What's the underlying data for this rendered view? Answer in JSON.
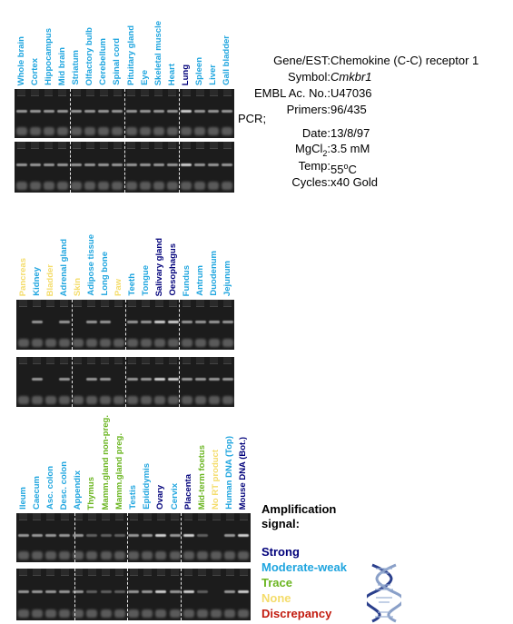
{
  "colors": {
    "strong": "#00007a",
    "moderate_weak": "#1fa5df",
    "trace": "#6ab520",
    "none": "#f4dc6a",
    "discrepancy": "#c21a0e"
  },
  "info": {
    "gene_est_key": "Gene/EST:",
    "gene_est_val": "Chemokine (C-C) receptor 1",
    "symbol_key": "Symbol:",
    "symbol_val": "Cmkbr1",
    "embl_key": "EMBL Ac. No.:",
    "embl_val": "U47036",
    "primers_key": "Primers:",
    "primers_val": "96/435",
    "pcr_key": "PCR;",
    "date_key": "Date:",
    "date_val": "13/8/97",
    "mgcl_key_main": "MgCl",
    "mgcl_key_sub": "2",
    "mgcl_key_colon": ":",
    "mgcl_val": "3.5 mM",
    "temp_key": "Temp:",
    "temp_val_num": "55",
    "temp_val_sup": "o",
    "temp_val_unit": "C",
    "cycles_key": "Cycles:",
    "cycles_val": "x40 Gold"
  },
  "panels": [
    {
      "lanes": [
        {
          "label": "Whole brain",
          "signal": "moderate_weak"
        },
        {
          "label": "Cortex",
          "signal": "moderate_weak"
        },
        {
          "label": "Hippocampus",
          "signal": "moderate_weak"
        },
        {
          "label": "Mid brain",
          "signal": "moderate_weak"
        },
        {
          "label": "Striatum",
          "signal": "moderate_weak"
        },
        {
          "label": "Olfactory bulb",
          "signal": "moderate_weak"
        },
        {
          "label": "Cerebellum",
          "signal": "moderate_weak"
        },
        {
          "label": "Spinal cord",
          "signal": "moderate_weak"
        },
        {
          "label": "Pituitary gland",
          "signal": "moderate_weak"
        },
        {
          "label": "Eye",
          "signal": "moderate_weak"
        },
        {
          "label": "Skeletal muscle",
          "signal": "moderate_weak"
        },
        {
          "label": "Heart",
          "signal": "moderate_weak"
        },
        {
          "label": "Lung",
          "signal": "strong"
        },
        {
          "label": "Spleen",
          "signal": "moderate_weak"
        },
        {
          "label": "Liver",
          "signal": "moderate_weak"
        },
        {
          "label": "Gall bladder",
          "signal": "moderate_weak"
        }
      ]
    },
    {
      "lanes": [
        {
          "label": "Pancreas",
          "signal": "none"
        },
        {
          "label": "Kidney",
          "signal": "moderate_weak"
        },
        {
          "label": "Bladder",
          "signal": "none"
        },
        {
          "label": "Adrenal gland",
          "signal": "moderate_weak"
        },
        {
          "label": "Skin",
          "signal": "none"
        },
        {
          "label": "Adipose tissue",
          "signal": "moderate_weak"
        },
        {
          "label": "Long bone",
          "signal": "moderate_weak"
        },
        {
          "label": "Paw",
          "signal": "none"
        },
        {
          "label": "Teeth",
          "signal": "moderate_weak"
        },
        {
          "label": "Tongue",
          "signal": "moderate_weak"
        },
        {
          "label": "Salivary gland",
          "signal": "strong"
        },
        {
          "label": "Oesophagus",
          "signal": "strong"
        },
        {
          "label": "Fundus",
          "signal": "moderate_weak"
        },
        {
          "label": "Antrum",
          "signal": "moderate_weak"
        },
        {
          "label": "Duodenum",
          "signal": "moderate_weak"
        },
        {
          "label": "Jejunum",
          "signal": "moderate_weak"
        }
      ]
    },
    {
      "lanes": [
        {
          "label": "Ileum",
          "signal": "moderate_weak"
        },
        {
          "label": "Caecum",
          "signal": "moderate_weak"
        },
        {
          "label": "Asc. colon",
          "signal": "moderate_weak"
        },
        {
          "label": "Desc. colon",
          "signal": "moderate_weak"
        },
        {
          "label": "Appendix",
          "signal": "moderate_weak"
        },
        {
          "label": "Thymus",
          "signal": "trace"
        },
        {
          "label": "Mamm.gland non-preg.",
          "signal": "trace"
        },
        {
          "label": "Mamm.gland preg.",
          "signal": "trace"
        },
        {
          "label": "Testis",
          "signal": "moderate_weak"
        },
        {
          "label": "Epididymis",
          "signal": "moderate_weak"
        },
        {
          "label": "Ovary",
          "signal": "strong"
        },
        {
          "label": "Cervix",
          "signal": "moderate_weak"
        },
        {
          "label": "Placenta",
          "signal": "strong"
        },
        {
          "label": "Mid-term foetus",
          "signal": "trace"
        },
        {
          "label": "No RT product",
          "signal": "none"
        },
        {
          "label": "Human DNA (Top)",
          "signal": "moderate_weak"
        },
        {
          "label": "Mouse DNA (Bot.)",
          "signal": "strong"
        }
      ]
    }
  ],
  "legend": {
    "title_line1": "Amplification",
    "title_line2": "signal:",
    "strong": "Strong",
    "moderate_weak": "Moderate-weak",
    "trace": "Trace",
    "none": "None",
    "discrepancy": "Discrepancy"
  }
}
